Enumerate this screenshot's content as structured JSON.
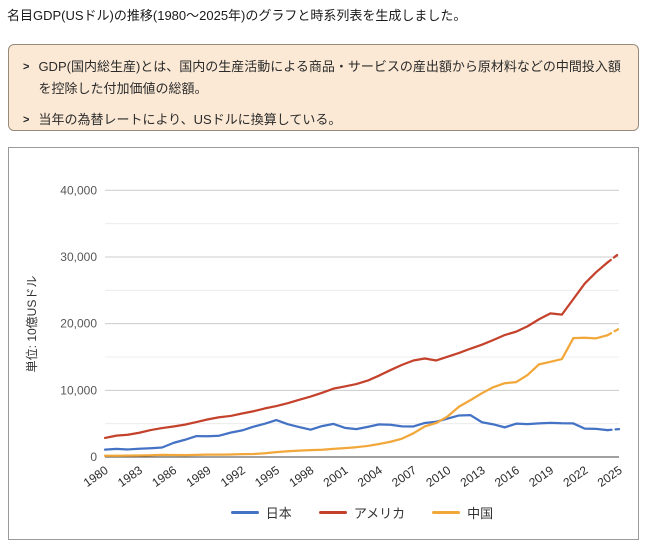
{
  "page": {
    "title": "名目GDP(USドル)の推移(1980〜2025年)のグラフと時系列表を生成しました。"
  },
  "note_box": {
    "bullet_glyph": ">",
    "items": [
      "GDP(国内総生産)とは、国内の生産活動による商品・サービスの産出額から原材料などの中間投入額を控除した付加価値の総額。",
      "当年の為替レートにより、USドルに換算している。"
    ]
  },
  "chart_data": {
    "type": "line",
    "title": "",
    "xlabel": "",
    "ylabel": "単位: 10億USドル",
    "ylim": [
      0,
      40000
    ],
    "y_ticks": [
      0,
      10000,
      20000,
      30000,
      40000
    ],
    "y_minor_gridlines": [
      5000,
      15000,
      25000,
      35000
    ],
    "grid": true,
    "legend_position": "bottom",
    "x_tick_step_years": 3,
    "x_tick_labels": [
      "1980",
      "1983",
      "1986",
      "1989",
      "1992",
      "1995",
      "1998",
      "2001",
      "2004",
      "2007",
      "2010",
      "2013",
      "2016",
      "2019",
      "2022",
      "2025"
    ],
    "x": [
      1980,
      1981,
      1982,
      1983,
      1984,
      1985,
      1986,
      1987,
      1988,
      1989,
      1990,
      1991,
      1992,
      1993,
      1994,
      1995,
      1996,
      1997,
      1998,
      1999,
      2000,
      2001,
      2002,
      2003,
      2004,
      2005,
      2006,
      2007,
      2008,
      2009,
      2010,
      2011,
      2012,
      2013,
      2014,
      2015,
      2016,
      2017,
      2018,
      2019,
      2020,
      2021,
      2022,
      2023,
      2024,
      2025
    ],
    "last_point_projected_dashed": true,
    "series": [
      {
        "id": "japan",
        "name": "日本",
        "color": "#4472c4",
        "values": [
          1105,
          1218,
          1134,
          1243,
          1318,
          1427,
          2121,
          2584,
          3134,
          3117,
          3196,
          3657,
          3988,
          4544,
          4998,
          5546,
          4924,
          4492,
          4098,
          4636,
          4968,
          4374,
          4182,
          4519,
          4893,
          4831,
          4601,
          4579,
          5106,
          5289,
          5759,
          6233,
          6272,
          5212,
          4897,
          4444,
          5003,
          4931,
          5041,
          5118,
          5055,
          5034,
          4256,
          4213,
          4026,
          4186
        ]
      },
      {
        "id": "usa",
        "name": "アメリカ",
        "color": "#c4422c",
        "values": [
          2857,
          3207,
          3344,
          3634,
          4038,
          4339,
          4580,
          4855,
          5236,
          5642,
          5963,
          6158,
          6520,
          6859,
          7287,
          7640,
          8073,
          8578,
          9063,
          9631,
          10251,
          10582,
          10936,
          11458,
          12214,
          13039,
          13816,
          14474,
          14770,
          14478,
          15049,
          15600,
          16254,
          16843,
          17551,
          18295,
          18805,
          19612,
          20657,
          21540,
          21354,
          23681,
          26007,
          27721,
          29185,
          30507
        ]
      },
      {
        "id": "china",
        "name": "中国",
        "color": "#f2a73b",
        "values": [
          191,
          196,
          205,
          231,
          260,
          310,
          301,
          273,
          312,
          348,
          361,
          383,
          427,
          445,
          564,
          734,
          864,
          962,
          1029,
          1094,
          1211,
          1339,
          1471,
          1660,
          1955,
          2286,
          2752,
          3550,
          4594,
          5102,
          6087,
          7552,
          8532,
          9570,
          10476,
          11062,
          11233,
          12310,
          13895,
          14280,
          14688,
          17820,
          17882,
          17795,
          18273,
          19232
        ]
      }
    ]
  }
}
